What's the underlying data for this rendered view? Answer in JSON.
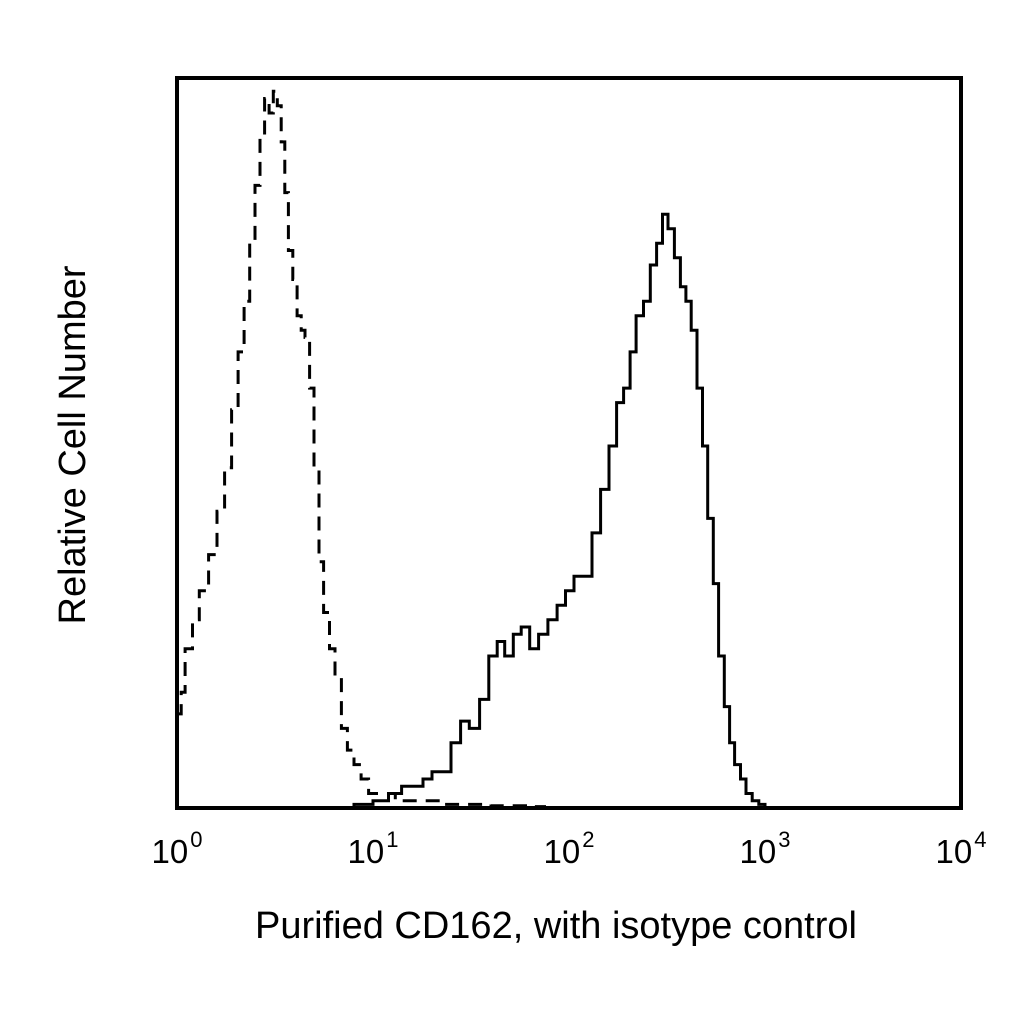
{
  "chart_data": {
    "type": "line",
    "xlabel": "Purified CD162, with isotype control",
    "ylabel": "Relative Cell Number",
    "x_scale": "log",
    "xlim": [
      1,
      10000
    ],
    "ylim": [
      0,
      100
    ],
    "grid": false,
    "ticks": [
      {
        "value": 1,
        "base": "10",
        "exp": "0"
      },
      {
        "value": 10,
        "base": "10",
        "exp": "1"
      },
      {
        "value": 100,
        "base": "10",
        "exp": "2"
      },
      {
        "value": 1000,
        "base": "10",
        "exp": "3"
      },
      {
        "value": 10000,
        "base": "10",
        "exp": "4"
      }
    ],
    "series": [
      {
        "style": "dashed",
        "x": [
          1.0,
          1.05,
          1.1,
          1.2,
          1.3,
          1.45,
          1.6,
          1.75,
          1.9,
          2.05,
          2.2,
          2.35,
          2.5,
          2.65,
          2.8,
          2.95,
          3.1,
          3.25,
          3.4,
          3.55,
          3.7,
          3.9,
          4.1,
          4.3,
          4.5,
          4.75,
          5.0,
          5.3,
          5.6,
          6.0,
          6.4,
          6.9,
          7.4,
          8.0,
          8.7,
          9.5,
          11,
          13,
          15,
          18,
          22,
          27,
          33,
          40,
          50,
          60,
          75
        ],
        "y": [
          13,
          16,
          22,
          26,
          30,
          35,
          41,
          47,
          55,
          63,
          70,
          78,
          86,
          93,
          98,
          96,
          99,
          97,
          92,
          85,
          77,
          73,
          68,
          66,
          65,
          58,
          47,
          34,
          27,
          22,
          18,
          11,
          8,
          6,
          4,
          2,
          2,
          1,
          1,
          1,
          0.5,
          0.5,
          0.5,
          0.3,
          0.3,
          0.2,
          0
        ]
      },
      {
        "style": "solid",
        "x": [
          1.0,
          2.0,
          4.0,
          6.0,
          8.0,
          10,
          12,
          14,
          16,
          18,
          20,
          22,
          25,
          28,
          31,
          35,
          39,
          43,
          47,
          52,
          57,
          63,
          70,
          78,
          87,
          96,
          106,
          118,
          131,
          145,
          160,
          175,
          190,
          205,
          220,
          240,
          260,
          280,
          300,
          320,
          345,
          370,
          395,
          420,
          450,
          480,
          510,
          545,
          580,
          620,
          660,
          700,
          750,
          800,
          860,
          930,
          1000,
          1100,
          1200
        ],
        "y": [
          0,
          0,
          0,
          0,
          0.5,
          1,
          2,
          3,
          3,
          4,
          5,
          5,
          9,
          12,
          11,
          15,
          21,
          23,
          21,
          24,
          25,
          22,
          24,
          26,
          28,
          30,
          32,
          32,
          38,
          44,
          50,
          56,
          58,
          63,
          68,
          70,
          75,
          78,
          82,
          80,
          76,
          72,
          70,
          66,
          58,
          50,
          40,
          31,
          21,
          14,
          9,
          6,
          4,
          2,
          1,
          0.5,
          0,
          0,
          0
        ]
      }
    ]
  }
}
